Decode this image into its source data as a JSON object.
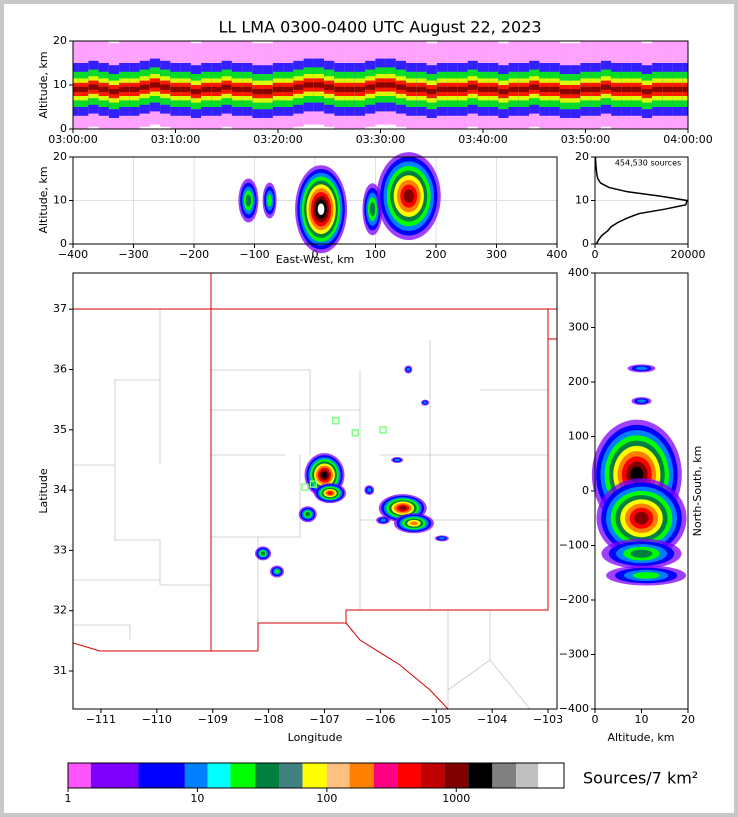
{
  "chart_data": [
    {
      "type": "density",
      "title": "LL LMA 0300-0400 UTC August 22, 2023",
      "y_label": "Altitude, km",
      "x": [
        0,
        1,
        2,
        3,
        4,
        5,
        6,
        7,
        8,
        9,
        10,
        11,
        12,
        13,
        14,
        15,
        16,
        17,
        18,
        19,
        20,
        21,
        22,
        23,
        24,
        25,
        26,
        27,
        28,
        29,
        30,
        31,
        32,
        33,
        34,
        35,
        36,
        37,
        38,
        39,
        40,
        41,
        42,
        43,
        44,
        45,
        46,
        47,
        48,
        49,
        50,
        51,
        52,
        53,
        54,
        55,
        56,
        57,
        58,
        59,
        60
      ],
      "values": [
        9,
        9,
        9.5,
        9,
        8.5,
        9,
        9,
        9.5,
        10,
        9.5,
        9,
        9,
        8.5,
        9,
        9,
        9.5,
        9,
        9,
        8.5,
        8.5,
        9,
        9,
        9.5,
        10,
        10,
        9.5,
        9,
        9,
        9,
        9.5,
        10,
        10,
        9.5,
        9,
        9,
        8.5,
        9,
        9,
        9,
        9.5,
        9,
        9,
        8.5,
        9,
        9,
        9.5,
        9,
        9,
        8.5,
        8.5,
        9,
        9,
        9.5,
        9,
        9,
        9,
        8.5,
        9,
        9,
        9,
        9
      ],
      "xlim": [
        0,
        60
      ],
      "xticks": [
        {
          "value": 0,
          "label": "03:00:00"
        },
        {
          "value": 10,
          "label": "03:10:00"
        },
        {
          "value": 20,
          "label": "03:20:00"
        },
        {
          "value": 30,
          "label": "03:30:00"
        },
        {
          "value": 40,
          "label": "03:40:00"
        },
        {
          "value": 50,
          "label": "03:50:00"
        },
        {
          "value": 60,
          "label": "04:00:00"
        }
      ],
      "ylim": [
        0,
        20
      ],
      "yticks": [
        0,
        10,
        20
      ]
    },
    {
      "type": "density",
      "x_label": "East-West, km",
      "y_label": "Altitude, km",
      "x": [
        -110,
        -75,
        10,
        95,
        155
      ],
      "values": [
        10,
        10,
        8,
        8,
        11
      ],
      "xlim": [
        -400,
        400
      ],
      "xticks": [
        {
          "value": -400,
          "label": "−400"
        },
        {
          "value": -300,
          "label": "−300"
        },
        {
          "value": -200,
          "label": "−200"
        },
        {
          "value": -100,
          "label": "−100"
        },
        0,
        100,
        200,
        300,
        400
      ],
      "ylim": [
        0,
        20
      ],
      "yticks": [
        0,
        10,
        20
      ],
      "grid": true
    },
    {
      "type": "line",
      "annotation": "454,530 sources",
      "color": "#000000",
      "x": [
        300,
        800,
        1500,
        2700,
        3500,
        5000,
        7000,
        9500,
        15000,
        19500,
        19800,
        14000,
        7000,
        3000,
        1200,
        600,
        400,
        300,
        200,
        150,
        100
      ],
      "values": [
        0,
        1,
        2,
        3,
        4,
        5,
        6,
        7,
        8,
        9,
        10,
        11,
        12,
        13,
        14,
        15,
        16,
        17,
        18,
        19,
        20
      ],
      "xlim": [
        0,
        20000
      ],
      "xticks": [
        0,
        20000
      ],
      "ylim": [
        0,
        20
      ],
      "yticks": [
        0,
        10,
        20
      ],
      "grid": true
    },
    {
      "type": "map",
      "x_label": "Longitude",
      "y_label": "Latitude",
      "x": [
        -107.0,
        -106.9,
        -105.6,
        -105.4,
        -107.3,
        -108.1,
        -107.85,
        -106.2,
        -105.7,
        -105.2,
        -105.5,
        -104.9,
        -105.95
      ],
      "values": [
        34.25,
        33.95,
        33.7,
        33.45,
        33.6,
        32.95,
        32.65,
        34.0,
        34.5,
        35.45,
        36.0,
        33.2,
        33.5
      ],
      "stations": {
        "x": [
          -106.8,
          -106.45,
          -105.95,
          -107.35,
          -107.2
        ],
        "values": [
          35.15,
          34.95,
          35.0,
          34.05,
          34.1
        ],
        "color": "#80ff80"
      },
      "xlim": [
        -111.5,
        -102.84
      ],
      "xticks": [
        {
          "value": -111,
          "label": "−111"
        },
        {
          "value": -110,
          "label": "−110"
        },
        {
          "value": -109,
          "label": "−109"
        },
        {
          "value": -108,
          "label": "−108"
        },
        {
          "value": -107,
          "label": "−107"
        },
        {
          "value": -106,
          "label": "−106"
        },
        {
          "value": -105,
          "label": "−105"
        },
        {
          "value": -104,
          "label": "−104"
        },
        {
          "value": -103,
          "label": "−103"
        }
      ],
      "ylim": [
        30.37,
        37.6
      ],
      "yticks": [
        31,
        32,
        33,
        34,
        35,
        36,
        37
      ]
    },
    {
      "type": "density",
      "x_label": "Altitude, km",
      "y_label": "North-South, km",
      "x": [
        10,
        10,
        9,
        10,
        10,
        11
      ],
      "values": [
        225,
        165,
        30,
        -50,
        -115,
        -155
      ],
      "xlim": [
        0,
        20
      ],
      "xticks": [
        0,
        10,
        20
      ],
      "ylim": [
        -400,
        400
      ],
      "yticks": [
        {
          "value": -400,
          "label": "−400"
        },
        {
          "value": -300,
          "label": "−300"
        },
        {
          "value": -200,
          "label": "−200"
        },
        {
          "value": -100,
          "label": "−100"
        },
        0,
        100,
        200,
        300,
        400
      ]
    },
    {
      "type": "colorbar",
      "label": "Sources/7 km²",
      "log": true,
      "bins": [
        1,
        1.5,
        3.5,
        8,
        12,
        18,
        28,
        43,
        65,
        100,
        150,
        230,
        350,
        530,
        810,
        1240,
        1900,
        2900,
        4300,
        6800
      ],
      "colors": [
        "#ff55ff",
        "#8000ff",
        "#0000ff",
        "#0080ff",
        "#00ffff",
        "#00ff00",
        "#008040",
        "#408080",
        "#ffff00",
        "#ffc080",
        "#ff8000",
        "#ff0080",
        "#ff0000",
        "#c00000",
        "#800000",
        "#000000",
        "#808080",
        "#c0c0c0",
        "#ffffff"
      ],
      "xlim": [
        1,
        6800
      ],
      "xticks": [
        1,
        10,
        100,
        1000
      ]
    }
  ]
}
